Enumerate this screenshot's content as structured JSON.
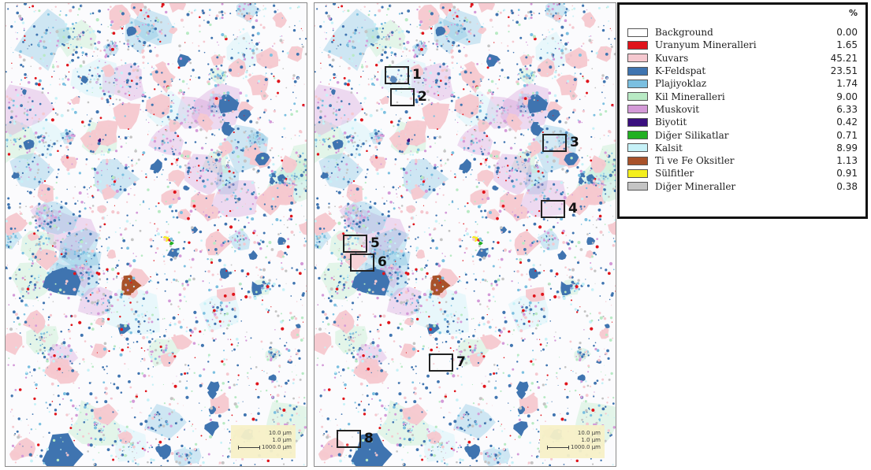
{
  "legend": {
    "percent_header": "%",
    "entries": [
      {
        "name": "Background",
        "value": "0.00",
        "color": "#ffffff"
      },
      {
        "name": "Uranyum Mineralleri",
        "value": "1.65",
        "color": "#e0141b"
      },
      {
        "name": "Kuvars",
        "value": "45.21",
        "color": "#f5c8cf"
      },
      {
        "name": "K-Feldspat",
        "value": "23.51",
        "color": "#3f74b0"
      },
      {
        "name": "Plajiyoklaz",
        "value": "1.74",
        "color": "#7bbfe0"
      },
      {
        "name": "Kil Mineralleri",
        "value": "9.00",
        "color": "#b8eac4"
      },
      {
        "name": "Muskovit",
        "value": "6.33",
        "color": "#d49ad8"
      },
      {
        "name": "Biyotit",
        "value": "0.42",
        "color": "#3a0f7e"
      },
      {
        "name": "Diğer Silikatlar",
        "value": "0.71",
        "color": "#22b022"
      },
      {
        "name": "Kalsit",
        "value": "8.99",
        "color": "#c6f1f7"
      },
      {
        "name": "Ti ve Fe Oksitler",
        "value": "1.13",
        "color": "#a8522a"
      },
      {
        "name": "Sülfitler",
        "value": "0.91",
        "color": "#f4ef1c"
      },
      {
        "name": "Diğer Mineraller",
        "value": "0.38",
        "color": "#c4c4c4"
      }
    ]
  },
  "scale": {
    "line1": "10.0 μm",
    "line2": "1.0 μm",
    "line3": "1000.0 μm"
  },
  "markers": [
    "1",
    "2",
    "3",
    "4",
    "5",
    "6",
    "7",
    "8"
  ]
}
